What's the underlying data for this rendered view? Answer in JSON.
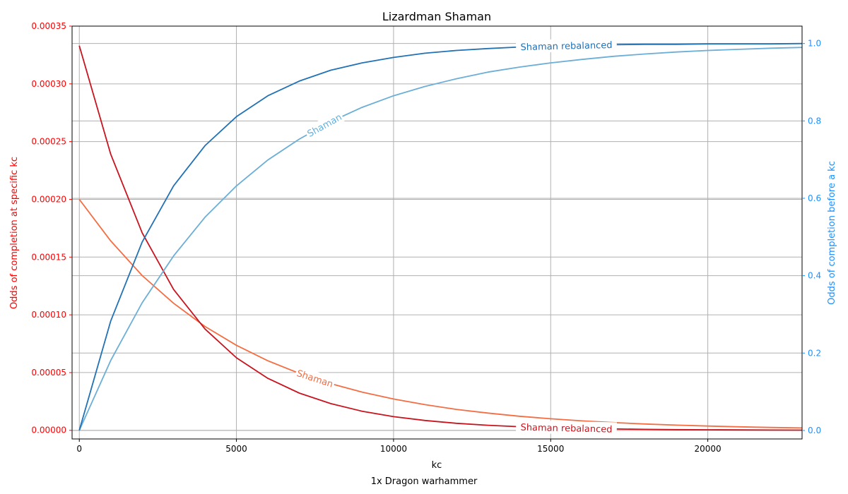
{
  "chart_data": {
    "type": "line",
    "title": "Lizardman Shaman",
    "xlabel": "kc",
    "footer": "1x Dragon warhammer",
    "ylabel_left": "Odds of completion at specific kc",
    "ylabel_right": "Odds of completion before a kc",
    "xlim": [
      -230,
      23000
    ],
    "ylim_left": [
      -7.5e-06,
      0.00035
    ],
    "ylim_right": [
      -0.022,
      1.045
    ],
    "xticks": [
      "0",
      "5000",
      "10000",
      "15000",
      "20000"
    ],
    "xtick_values": [
      0,
      5000,
      10000,
      15000,
      20000
    ],
    "yticks_left": [
      "0.00000",
      "0.00005",
      "0.00010",
      "0.00015",
      "0.00020",
      "0.00025",
      "0.00030",
      "0.00035"
    ],
    "ytick_values_left": [
      0,
      5e-05,
      0.0001,
      0.00015,
      0.0002,
      0.00025,
      0.0003,
      0.00035
    ],
    "yticks_right": [
      "0.0",
      "0.2",
      "0.4",
      "0.6",
      "0.8",
      "1.0"
    ],
    "ytick_values_right": [
      0,
      0.2,
      0.4,
      0.6,
      0.8,
      1.0
    ],
    "grid": true,
    "colors": {
      "left_axis": "#ff0000",
      "right_axis": "#1e90ff",
      "grid": "#b0b0b0"
    },
    "series": [
      {
        "name": "Shaman",
        "axis": "left",
        "kind": "pmf",
        "color": "#f46d43",
        "x": [
          0,
          1000,
          2000,
          3000,
          4000,
          5000,
          6000,
          7000,
          8000,
          9000,
          10000,
          11000,
          12000,
          13000,
          14000,
          15000,
          16000,
          17000,
          18000,
          19000,
          20000,
          21000,
          22000,
          23000
        ],
        "y": [
          0.0002,
          0.000164,
          0.000134,
          0.00011,
          8.99e-05,
          7.36e-05,
          6.02e-05,
          4.93e-05,
          4.04e-05,
          3.31e-05,
          2.71e-05,
          2.22e-05,
          1.81e-05,
          1.49e-05,
          1.22e-05,
          9.95e-06,
          8.15e-06,
          6.67e-06,
          5.46e-06,
          4.47e-06,
          3.66e-06,
          3e-06,
          2.45e-06,
          2.01e-06
        ]
      },
      {
        "name": "Shaman rebalanced",
        "axis": "left",
        "kind": "pmf",
        "color": "#c8141e",
        "x": [
          0,
          1000,
          2000,
          3000,
          4000,
          5000,
          6000,
          7000,
          8000,
          9000,
          10000,
          11000,
          12000,
          13000,
          14000,
          15000,
          16000,
          17000,
          18000,
          19000,
          20000,
          21000,
          22000,
          23000
        ],
        "y": [
          0.000333,
          0.000239,
          0.000171,
          0.000122,
          8.77e-05,
          6.28e-05,
          4.5e-05,
          3.22e-05,
          2.31e-05,
          1.65e-05,
          1.18e-05,
          8.49e-06,
          6.08e-06,
          4.35e-06,
          3.12e-06,
          2.23e-06,
          1.6e-06,
          1.15e-06,
          8.2e-07,
          5.9e-07,
          4.2e-07,
          3e-07,
          2.2e-07,
          1.6e-07
        ]
      },
      {
        "name": "Shaman",
        "axis": "right",
        "kind": "cdf",
        "color": "#6baed6",
        "x": [
          0,
          1000,
          2000,
          3000,
          4000,
          5000,
          6000,
          7000,
          8000,
          9000,
          10000,
          11000,
          12000,
          13000,
          14000,
          15000,
          16000,
          17000,
          18000,
          19000,
          20000,
          21000,
          22000,
          23000
        ],
        "y": [
          0,
          0.181,
          0.33,
          0.451,
          0.551,
          0.632,
          0.699,
          0.753,
          0.798,
          0.835,
          0.865,
          0.889,
          0.909,
          0.926,
          0.939,
          0.95,
          0.959,
          0.967,
          0.973,
          0.978,
          0.982,
          0.985,
          0.988,
          0.99
        ]
      },
      {
        "name": "Shaman rebalanced",
        "axis": "right",
        "kind": "cdf",
        "color": "#2171b5",
        "x": [
          0,
          1000,
          2000,
          3000,
          4000,
          5000,
          6000,
          7000,
          8000,
          9000,
          10000,
          11000,
          12000,
          13000,
          14000,
          15000,
          16000,
          17000,
          18000,
          19000,
          20000,
          21000,
          22000,
          23000
        ],
        "y": [
          0,
          0.283,
          0.487,
          0.632,
          0.736,
          0.811,
          0.865,
          0.903,
          0.931,
          0.95,
          0.964,
          0.975,
          0.982,
          0.987,
          0.991,
          0.993,
          0.995,
          0.997,
          0.998,
          0.998,
          0.999,
          0.999,
          0.999,
          1.0
        ]
      }
    ],
    "inline_labels": [
      {
        "text": "Shaman rebalanced",
        "series": 3,
        "x": 15500
      },
      {
        "text": "Shaman",
        "series": 2,
        "x": 7800
      },
      {
        "text": "Shaman",
        "series": 0,
        "x": 7500
      },
      {
        "text": "Shaman rebalanced",
        "series": 1,
        "x": 15500
      }
    ]
  }
}
